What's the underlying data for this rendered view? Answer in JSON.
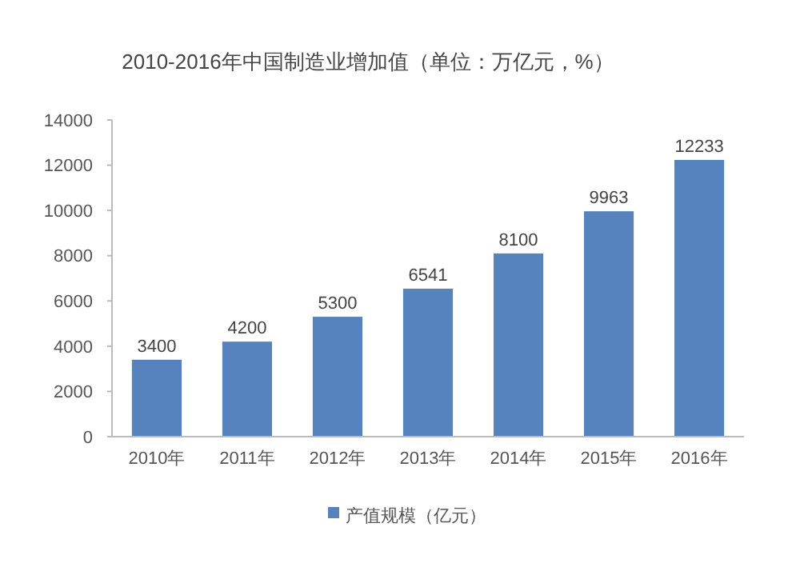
{
  "chart_data": {
    "type": "bar",
    "title": "2010-2016年中国制造业增加值（单位：万亿元，%）",
    "categories": [
      "2010年",
      "2011年",
      "2012年",
      "2013年",
      "2014年",
      "2015年",
      "2016年"
    ],
    "series": [
      {
        "name": "产值规模（亿元）",
        "color": "#5682bd",
        "values": [
          3400,
          4200,
          5300,
          6541,
          8100,
          9963,
          12233
        ]
      }
    ],
    "ylim": [
      0,
      14000
    ],
    "yticks": [
      0,
      2000,
      4000,
      6000,
      8000,
      10000,
      12000,
      14000
    ],
    "data_labels": true,
    "legend": "bottom",
    "grid": false
  }
}
